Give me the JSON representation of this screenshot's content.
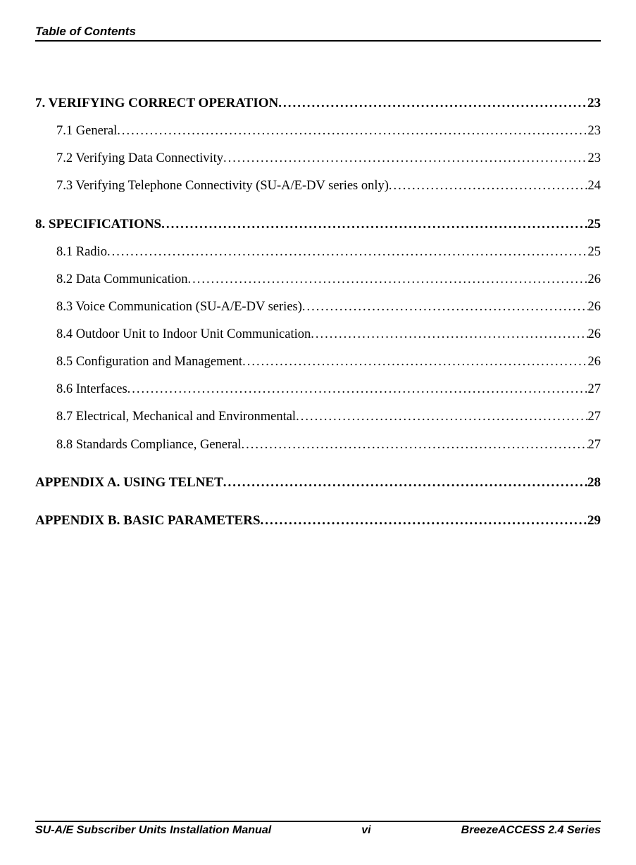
{
  "header": {
    "title": "Table of Contents"
  },
  "toc": {
    "sections": [
      {
        "title": "7. VERIFYING CORRECT OPERATION ",
        "page": "23",
        "items": [
          {
            "title": "7.1 General ",
            "page": "23"
          },
          {
            "title": "7.2 Verifying Data Connectivity ",
            "page": "23"
          },
          {
            "title": "7.3 Verifying Telephone Connectivity (SU-A/E-DV series only)",
            "page": "24"
          }
        ]
      },
      {
        "title": "8. SPECIFICATIONS ",
        "page": "25",
        "items": [
          {
            "title": "8.1 Radio ",
            "page": "25"
          },
          {
            "title": "8.2 Data Communication",
            "page": "26"
          },
          {
            "title": "8.3 Voice Communication (SU-A/E-DV series)",
            "page": "26"
          },
          {
            "title": "8.4 Outdoor Unit to Indoor Unit Communication",
            "page": "26"
          },
          {
            "title": "8.5 Configuration and Management",
            "page": "26"
          },
          {
            "title": "8.6 Interfaces ",
            "page": "27"
          },
          {
            "title": "8.7 Electrical, Mechanical and Environmental ",
            "page": "27"
          },
          {
            "title": "8.8 Standards Compliance, General ",
            "page": "27"
          }
        ]
      },
      {
        "title": "APPENDIX A. USING TELNET",
        "page": "28",
        "items": []
      },
      {
        "title": "APPENDIX B. BASIC PARAMETERS",
        "page": "29",
        "items": []
      }
    ]
  },
  "footer": {
    "left": "SU-A/E Subscriber Units Installation Manual",
    "center": "vi",
    "right": "BreezeACCESS 2.4 Series"
  }
}
